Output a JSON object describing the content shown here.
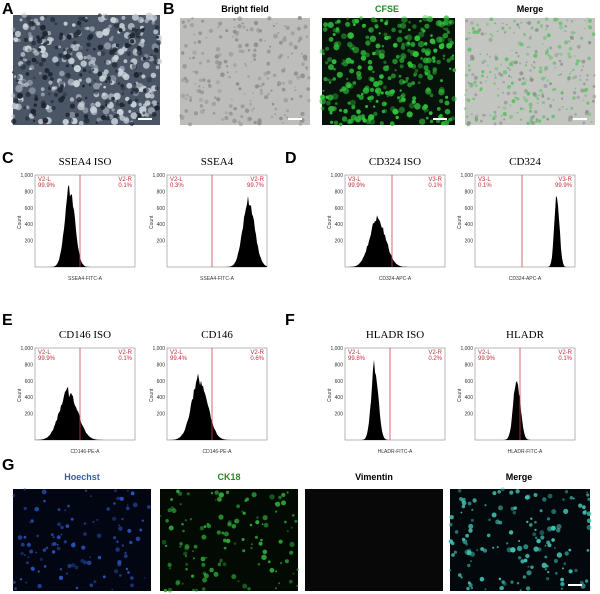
{
  "panel_labels": [
    "A",
    "B",
    "C",
    "D",
    "E",
    "F",
    "G"
  ],
  "b_titles": [
    "Bright field",
    "CFSE",
    "Merge"
  ],
  "histograms": [
    {
      "title": "SSEA4 ISO",
      "gate_left": "V2-L",
      "pct_left": "99.9%",
      "gate_right": "V2-R",
      "pct_right": "0.1%",
      "y_axis": "Count",
      "x_axis": "SSEA4-FITC-A"
    },
    {
      "title": "SSEA4",
      "gate_left": "V2-L",
      "pct_left": "0.3%",
      "gate_right": "V2-R",
      "pct_right": "99.7%",
      "y_axis": "Count",
      "x_axis": "SSEA4-FITC-A"
    },
    {
      "title": "CD324 ISO",
      "gate_left": "V3-L",
      "pct_left": "99.9%",
      "gate_right": "V3-R",
      "pct_right": "0.1%",
      "y_axis": "Count",
      "x_axis": "CD324-APC-A"
    },
    {
      "title": "CD324",
      "gate_left": "V3-L",
      "pct_left": "0.1%",
      "gate_right": "V3-R",
      "pct_right": "99.9%",
      "y_axis": "Count",
      "x_axis": "CD324-APC-A"
    },
    {
      "title": "CD146 ISO",
      "gate_left": "V2-L",
      "pct_left": "99.9%",
      "gate_right": "V2-R",
      "pct_right": "0.1%",
      "y_axis": "Count",
      "x_axis": "CD146-PE-A"
    },
    {
      "title": "CD146",
      "gate_left": "V2-L",
      "pct_left": "99.4%",
      "gate_right": "V2-R",
      "pct_right": "0.6%",
      "y_axis": "Count",
      "x_axis": "CD146-PE-A"
    },
    {
      "title": "HLADR ISO",
      "gate_left": "V2-L",
      "pct_left": "99.8%",
      "gate_right": "V2-R",
      "pct_right": "0.2%",
      "y_axis": "Count",
      "x_axis": "HLADR-FITC-A"
    },
    {
      "title": "HLADR",
      "gate_left": "V2-L",
      "pct_left": "99.9%",
      "gate_right": "V2-R",
      "pct_right": "0.1%",
      "y_axis": "Count",
      "x_axis": "HLADR-FITC-A"
    }
  ],
  "y_ticks": [
    "1,000",
    "800",
    "600",
    "400",
    "200"
  ],
  "g_titles": [
    "Hoechst",
    "CK18",
    "Vimentin",
    "Merge"
  ]
}
